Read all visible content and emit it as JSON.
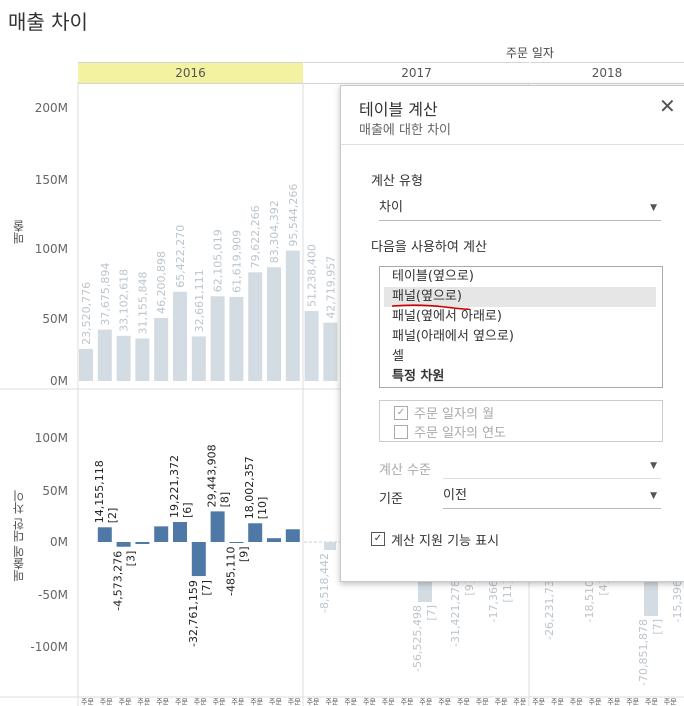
{
  "sheet_title": "매출 차이",
  "column_field": "주문 일자",
  "years": [
    "2016",
    "2017",
    "2018"
  ],
  "upper_axis": {
    "label": "매출",
    "ticks": [
      "200M",
      "150M",
      "100M",
      "50M",
      "0M"
    ]
  },
  "lower_axis": {
    "label": "매출에 대한 차이",
    "ticks": [
      "100M",
      "50M",
      "0M",
      "-50M",
      "-100M"
    ]
  },
  "x_tick_label": "주문",
  "chart_data": [
    {
      "type": "bar",
      "title": "",
      "ylabel": "매출",
      "ylim": [
        0,
        220000000
      ],
      "categories": [
        "2016-1",
        "2016-2",
        "2016-3",
        "2016-4",
        "2016-5",
        "2016-6",
        "2016-7",
        "2016-8",
        "2016-9",
        "2016-10",
        "2016-11",
        "2016-12",
        "2017-1",
        "2017-2"
      ],
      "values": [
        23520776,
        37675894,
        33102618,
        31155848,
        46200898,
        65422270,
        32661111,
        62105019,
        61619909,
        79622266,
        83304392,
        95544266,
        51238400,
        42719957
      ],
      "labels": [
        "23,520,776",
        "37,675,894",
        "33,102,618",
        "31,155,848",
        "46,200,898",
        "65,422,270",
        "32,661,111",
        "62,105,019",
        "61,619,909",
        "79,622,266",
        "83,304,392",
        "95,544,266",
        "51,238,400",
        "42,719,957"
      ]
    },
    {
      "type": "bar",
      "title": "",
      "ylabel": "매출에 대한 차이",
      "ylim": [
        -110000000,
        110000000
      ],
      "categories": [
        "2016-2",
        "2016-3",
        "2016-4",
        "2016-5",
        "2016-6",
        "2016-7",
        "2016-8",
        "2016-9",
        "2016-10",
        "2016-11",
        "2016-12"
      ],
      "values": [
        14155118,
        -4573276,
        -1946770,
        15045050,
        19221372,
        -32761159,
        29443908,
        -485110,
        18002357,
        3682126,
        12239874
      ],
      "labels": [
        "14,155,118",
        "-4,573,276",
        "",
        "",
        "19,221,372",
        "-32,761,159",
        "29,443,908",
        "-485,110",
        "18,002,357",
        "",
        ""
      ],
      "index_labels": [
        "[2]",
        "[3]",
        "",
        "",
        "[6]",
        "[7]",
        "[8]",
        "[9]",
        "[10]",
        "",
        ""
      ],
      "faded_2017_labels": [
        "-8,518,442",
        "-56,525,498",
        "-31,421,278",
        "-17,366",
        "-26,231,73",
        "-18,510",
        "-70,851,878",
        "-15,396"
      ],
      "faded_2017_index": [
        "[7]",
        "[9]",
        "[11]",
        "[4]",
        "[7]"
      ]
    }
  ],
  "dialog": {
    "title": "테이블 계산",
    "subtitle": "매출에 대한 차이",
    "calc_type_label": "계산 유형",
    "calc_type_value": "차이",
    "compute_using_label": "다음을 사용하여 계산",
    "options": [
      "테이블(옆으로)",
      "패널(옆으로)",
      "패널(옆에서 아래로)",
      "패널(아래에서 옆으로)",
      "셀",
      "특정 차원"
    ],
    "selected_option": 1,
    "dim_checks": [
      {
        "label": "주문 일자의 월",
        "checked": true
      },
      {
        "label": "주문 일자의 연도",
        "checked": false
      }
    ],
    "level_label": "계산 수준",
    "relative_label": "기준",
    "relative_value": "이전",
    "show_assist_label": "계산 지원 기능 표시",
    "show_assist_checked": true
  },
  "colors": {
    "bar_light": "#d3dbe3",
    "bar_blue": "#4e79a7",
    "highlight": "#f3f2a0",
    "underline": "#cc0000"
  }
}
